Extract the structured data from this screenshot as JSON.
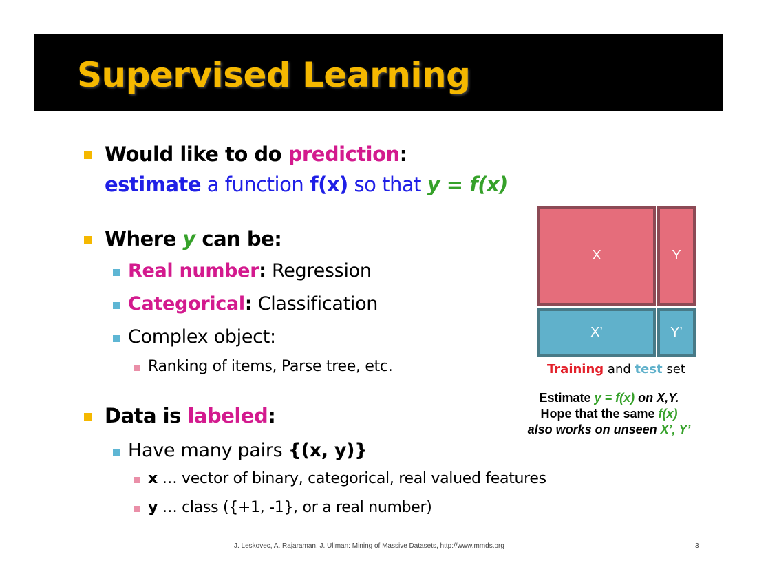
{
  "title": "Supervised Learning",
  "bullets": {
    "b1": {
      "prefix": "Would like to do ",
      "highlight": "prediction",
      "suffix": ":",
      "line2_estimate": "estimate",
      "line2_mid": " a function ",
      "line2_fx": "f(x)",
      "line2_sothat": " so that ",
      "line2_eq": "y = f(x)"
    },
    "b2": {
      "prefix": "Where ",
      "y": "y",
      "suffix": " can be:",
      "sub1_label": "Real number",
      "sub1_colon": ":",
      "sub1_rest": " Regression",
      "sub2_label": "Categorical",
      "sub2_colon": ":",
      "sub2_rest": " Classification",
      "sub3": "Complex object:",
      "sub3_sub": "Ranking of items, Parse tree, etc."
    },
    "b3": {
      "prefix": "Data is ",
      "highlight": "labeled",
      "suffix": ":",
      "sub1_prefix": "Have many pairs ",
      "sub1_bold": "{(x, y)}",
      "sub1_sub1_bold": "x",
      "sub1_sub1_rest": " … vector of binary, categorical, real valued features",
      "sub1_sub2_bold": "y",
      "sub1_sub2_rest": " … class ({+1, -1}, or a real number)"
    }
  },
  "diagram": {
    "x_label": "X",
    "y_label": "Y",
    "xp_label": "X’",
    "yp_label": "Y’",
    "caption_training": "Training",
    "caption_and": " and ",
    "caption_test": "test",
    "caption_set": " set",
    "note_line1_a": "Estimate ",
    "note_line1_eq": "y = f(x)",
    "note_line1_b": " on X,Y.",
    "note_line2_a": "Hope that the same ",
    "note_line2_fx": "f(x)",
    "note_line3_a": "also works on unseen ",
    "note_line3_xy": "X’, Y’"
  },
  "colors": {
    "title": "#f5b800",
    "magenta": "#d31a8e",
    "blue": "#1f1fe6",
    "green": "#36a12a",
    "train_box": "#e56d7b",
    "test_box": "#60b1cb"
  },
  "footer": {
    "citation": "J. Leskovec, A. Rajaraman, J. Ullman: Mining of Massive Datasets, http://www.mmds.org",
    "page": "3"
  }
}
